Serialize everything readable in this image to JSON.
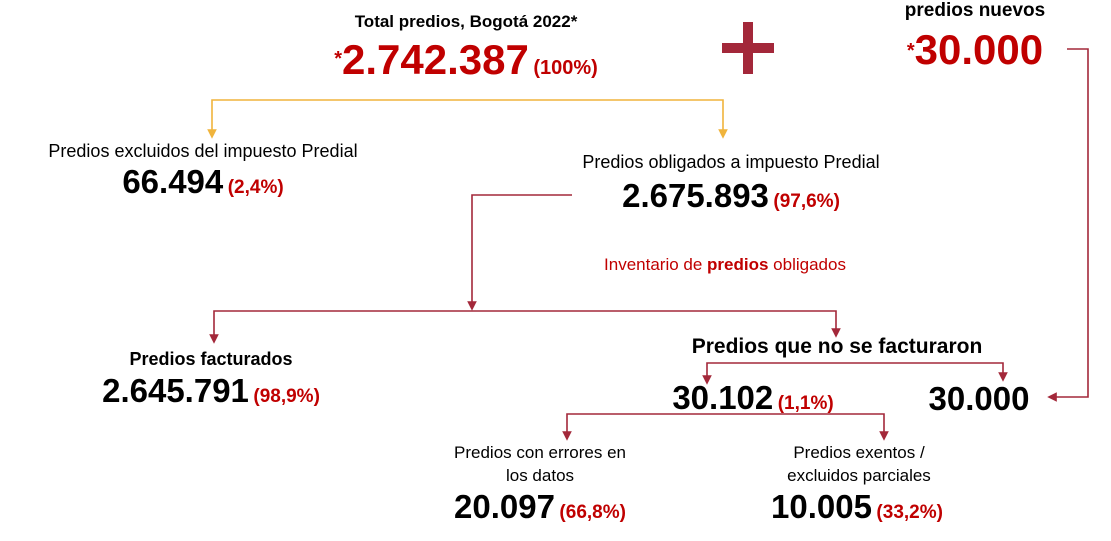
{
  "total": {
    "label": "Total predios, Bogotá 2022*",
    "asterisk": "*",
    "value": "2.742.387",
    "pct": "(100%)"
  },
  "plus_sign": "+",
  "new": {
    "label": "predios nuevos",
    "asterisk": "*",
    "value": "30.000"
  },
  "excluded": {
    "label": "Predios excluidos del impuesto Predial",
    "value": "66.494",
    "pct": "(2,4%)"
  },
  "obligated": {
    "label": "Predios obligados a impuesto Predial",
    "value": "2.675.893",
    "pct": "(97,6%)"
  },
  "inventory": {
    "prefix": "Inventario de ",
    "highlight": "predios",
    "suffix": " obligados"
  },
  "billed": {
    "label": "Predios facturados",
    "value": "2.645.791",
    "pct": "(98,9%)"
  },
  "not_billed": {
    "label": "Predios que no se facturaron",
    "value": "30.102",
    "pct": "(1,1%)",
    "extra_value": "30.000"
  },
  "errors": {
    "label_line1": "Predios con errores en",
    "label_line2": "los datos",
    "value": "20.097",
    "pct": "(66,8%)"
  },
  "exempt": {
    "label_line1": "Predios exentos /",
    "label_line2": "excluidos parciales",
    "value": "10.005",
    "pct": "(33,2%)"
  },
  "colors": {
    "accent_red": "#c00000",
    "connector_red": "#a3283a",
    "connector_orange": "#f0b43c"
  }
}
